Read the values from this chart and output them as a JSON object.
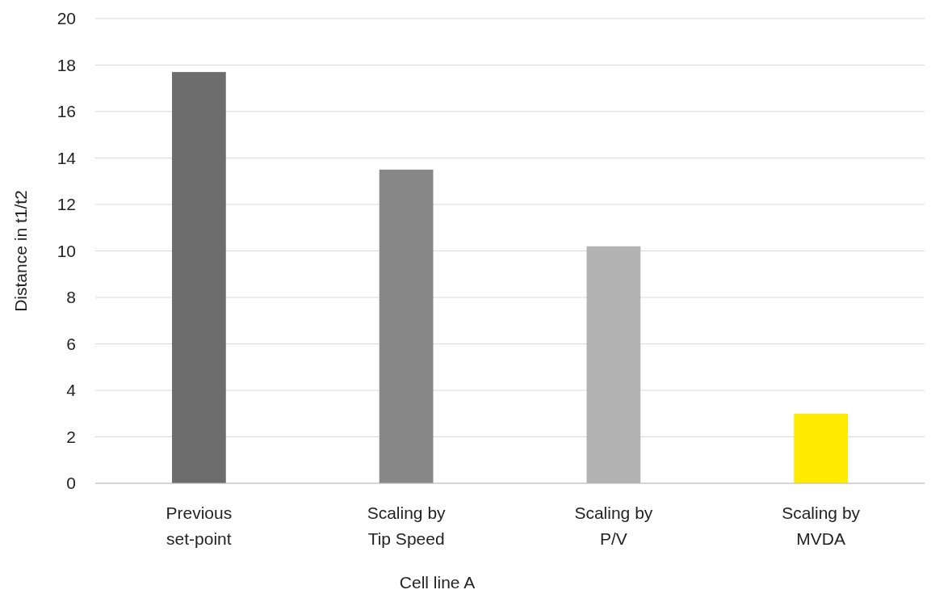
{
  "chart_data": {
    "type": "bar",
    "xlabel": "Cell line A",
    "ylabel": "Distance in t1/t2",
    "categories": [
      "Previous set-point",
      "Scaling by Tip Speed",
      "Scaling by P/V",
      "Scaling by MVDA"
    ],
    "values": [
      17.7,
      13.5,
      10.2,
      3.0
    ],
    "colors": [
      "#6d6d6d",
      "#878787",
      "#b3b3b3",
      "#ffea00"
    ],
    "ylim": [
      0,
      20
    ],
    "yticks": [
      0,
      2,
      4,
      6,
      8,
      10,
      12,
      14,
      16,
      18,
      20
    ],
    "grid": "y"
  }
}
